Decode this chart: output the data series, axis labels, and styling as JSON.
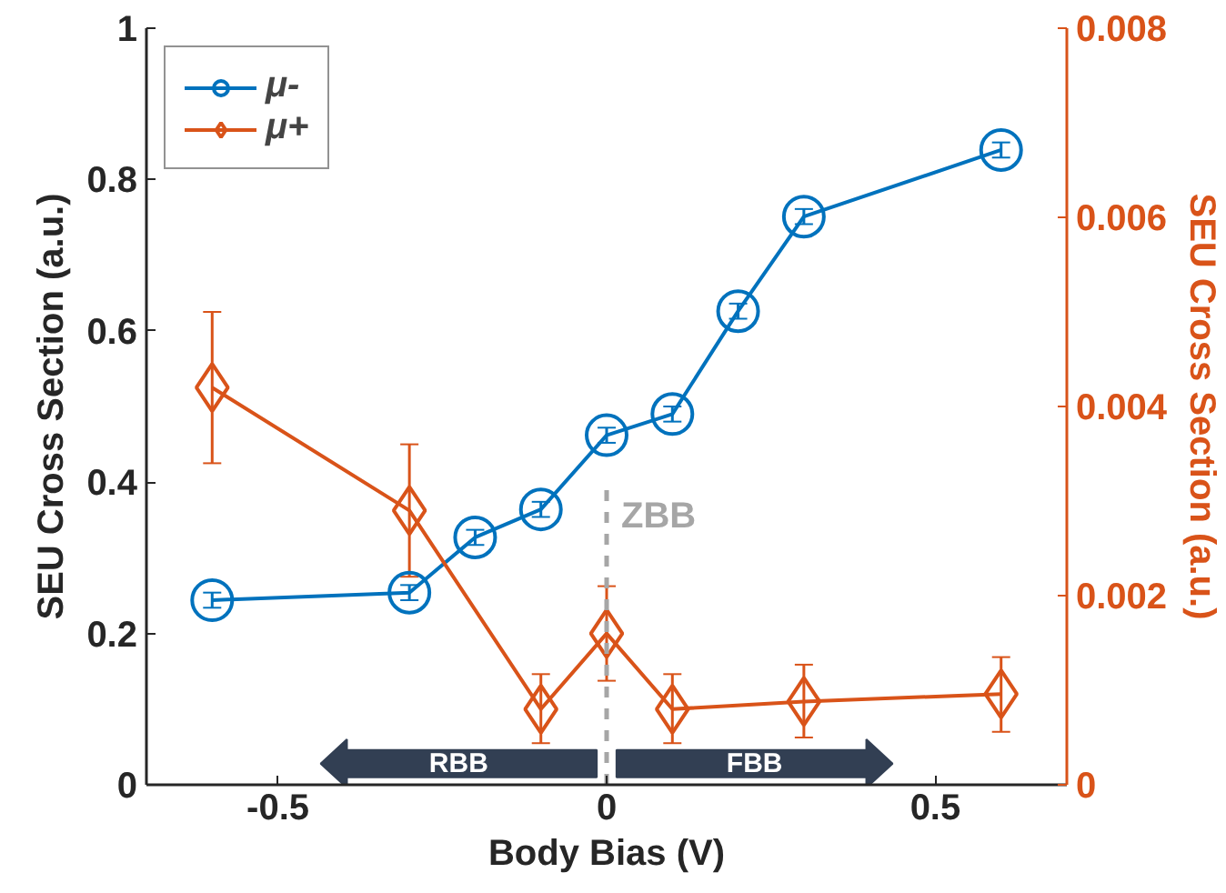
{
  "chart_data": {
    "type": "line",
    "xlabel": "Body Bias (V)",
    "ylabel": "SEU Cross Section (a.u.)",
    "y2label": "SEU Cross Section (a.u.)",
    "xlim": [
      -0.7,
      0.7
    ],
    "xticks": [
      -0.5,
      0,
      0.5
    ],
    "ylim": [
      0,
      1
    ],
    "yticks": [
      0,
      0.2,
      0.4,
      0.6,
      0.8,
      1
    ],
    "y2lim": [
      0,
      0.008
    ],
    "y2ticks": [
      0,
      0.002,
      0.004,
      0.006,
      0.008
    ],
    "grid": false,
    "legend": "top left",
    "line_style": "solid",
    "series": [
      {
        "name": "μ-",
        "color": "#0072bd",
        "marker": "circle",
        "x": [
          -0.6,
          -0.3,
          -0.2,
          -0.1,
          0,
          0.1,
          0.2,
          0.3,
          0.6
        ],
        "values": [
          0.244,
          0.254,
          0.327,
          0.364,
          0.462,
          0.49,
          0.626,
          0.751,
          0.839
        ],
        "errors": [
          0.01,
          0.01,
          0.01,
          0.01,
          0.01,
          0.01,
          0.01,
          0.01,
          0.01
        ]
      },
      {
        "name": "μ+",
        "color": "#d95319",
        "marker": "diamond",
        "axis": "y2",
        "x": [
          -0.6,
          -0.3,
          -0.1,
          0,
          0.1,
          0.3,
          0.6
        ],
        "values": [
          0.0042,
          0.0029,
          0.0008,
          0.0016,
          0.0008,
          0.00088,
          0.00096
        ],
        "errors": [
          [
            0.0034,
            0.005
          ],
          [
            0.0022,
            0.0036
          ],
          [
            0.00044,
            0.00117
          ],
          [
            0.0011,
            0.0021
          ],
          [
            0.00044,
            0.00117
          ],
          [
            0.0005,
            0.00127
          ],
          [
            0.00056,
            0.00135
          ]
        ]
      }
    ],
    "ref_lines": [
      {
        "axis": "x",
        "value": 0,
        "label": "ZBB",
        "color": "#a6a6a6",
        "line_style": "dashed"
      }
    ],
    "annotations": [
      "RBB",
      "FBB"
    ]
  }
}
